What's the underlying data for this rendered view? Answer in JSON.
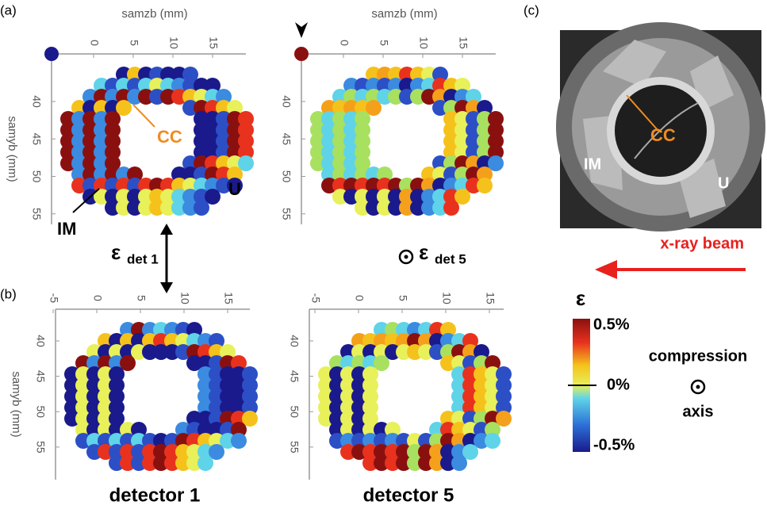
{
  "panel_labels": [
    "(a)",
    "(b)",
    "(c)"
  ],
  "panels": [
    {
      "x_label": "samzb (mm)",
      "y_label": "samyb (mm)",
      "xticks": [
        0,
        5,
        10,
        15
      ],
      "yticks": [
        40,
        45,
        50,
        55
      ]
    },
    {
      "x_label": "samzb (mm)",
      "xticks": [
        0,
        5,
        10,
        15
      ],
      "yticks": [
        40,
        45,
        50,
        55
      ]
    },
    {
      "y_label": "samyb (mm)",
      "xticks": [
        -5,
        0,
        5,
        10,
        15
      ],
      "yticks": [
        40,
        45,
        50,
        55
      ]
    },
    {
      "xticks": [
        -5,
        0,
        5,
        10,
        15
      ],
      "yticks": [
        40,
        45,
        50,
        55
      ]
    }
  ],
  "annotations": {
    "cc": "CC",
    "im": "IM",
    "u": "U"
  },
  "strain_det1": {
    "symbol": "ε",
    "subscript": "det 1"
  },
  "strain_det5": {
    "symbol": "ε",
    "subscript": "det 5"
  },
  "image": {
    "cc": "CC",
    "im": "IM",
    "u": "U"
  },
  "beam": "x-ray beam",
  "colorbar": {
    "symbol": "ε",
    "ticks": [
      {
        "value": 0.5,
        "label": "0.5%"
      },
      {
        "value": 0,
        "label": "0%"
      },
      {
        "value": -0.5,
        "label": "-0.5%"
      }
    ]
  },
  "compression": [
    "compression",
    "axis"
  ],
  "captions": [
    "detector 1",
    "detector 5"
  ]
}
